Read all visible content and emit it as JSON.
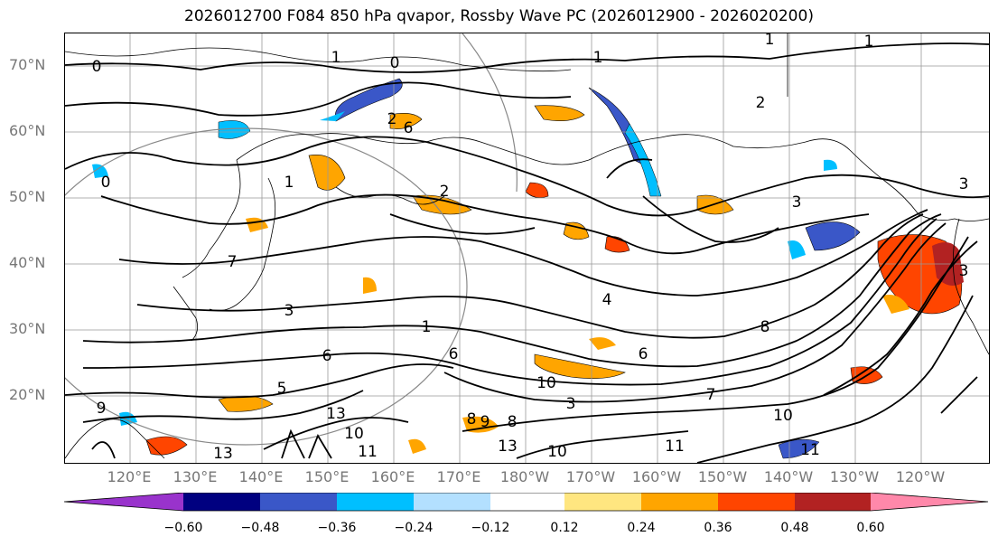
{
  "title": "2026012700 F084 850 hPa qvapor, Rossby Wave PC (2026012900 - 2026020200)",
  "lat_labels": [
    "70°N",
    "60°N",
    "50°N",
    "40°N",
    "30°N",
    "20°N"
  ],
  "lon_labels": [
    "120°E",
    "130°E",
    "140°E",
    "150°E",
    "160°E",
    "170°E",
    "180°W",
    "170°W",
    "160°W",
    "150°W",
    "140°W",
    "130°W",
    "120°W"
  ],
  "colorbar": {
    "colors": [
      "#9933cc",
      "#000080",
      "#3a57c8",
      "#00bfff",
      "#b3e0ff",
      "#ffffff",
      "#ffe680",
      "#ffa500",
      "#ff4500",
      "#b22222",
      "#ff88aa"
    ],
    "tick_labels": [
      "−0.60",
      "−0.48",
      "−0.36",
      "−0.24",
      "−0.12",
      "0.12",
      "0.24",
      "0.36",
      "0.48",
      "0.60"
    ]
  },
  "contour_labels": [
    "0",
    "1",
    "0",
    "1",
    "1",
    "1",
    "2",
    "2",
    "6",
    "0",
    "2",
    "3",
    "1",
    "7",
    "3",
    "6",
    "1",
    "6",
    "4",
    "6",
    "8",
    "10",
    "7",
    "3",
    "5",
    "8",
    "10",
    "13",
    "10",
    "11",
    "9",
    "8",
    "13",
    "10",
    "11",
    "11",
    "13",
    "9",
    "3",
    "3"
  ]
}
